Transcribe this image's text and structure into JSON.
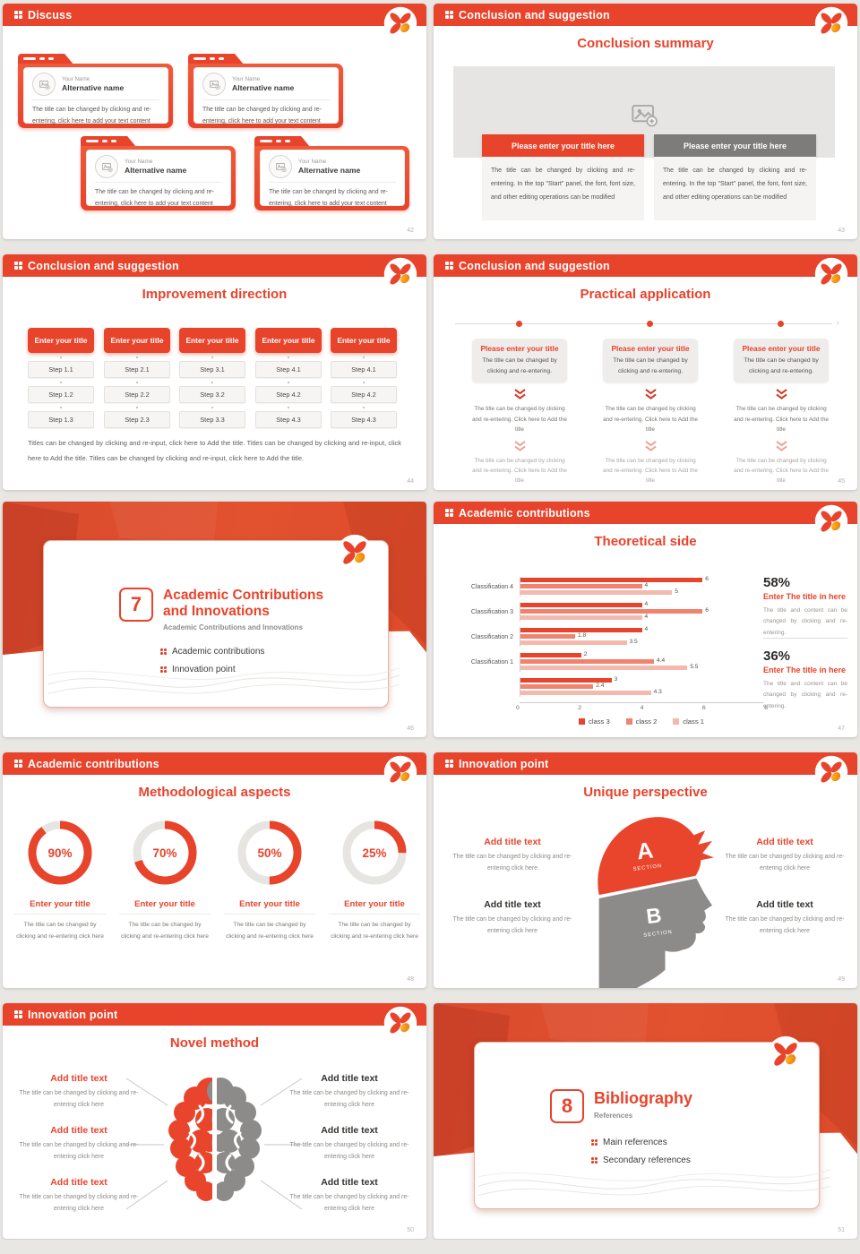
{
  "page": {
    "background": "#e9e7e4",
    "accent": "#e8432b"
  },
  "slides": [
    {
      "header": "Discuss",
      "page_number": "42",
      "cards": [
        {
          "name_label": "Your Name",
          "title": "Alternative name",
          "body": "The title can be changed by clicking and re-entering, click here to add your text content"
        },
        {
          "name_label": "Your Name",
          "title": "Alternative name",
          "body": "The title can be changed by clicking and re-entering, click here to add your text content"
        },
        {
          "name_label": "Your Name",
          "title": "Alternative name",
          "body": "The title can be changed by clicking and re-entering, click here to add your text content"
        },
        {
          "name_label": "Your Name",
          "title": "Alternative name",
          "body": "The title can be changed by clicking and re-entering, click here to add your text content"
        }
      ]
    },
    {
      "header": "Conclusion and suggestion",
      "title": "Conclusion summary",
      "page_number": "43",
      "panels": [
        {
          "title_bar": "Please enter your title here",
          "body": "The title can be changed by clicking and re-entering. In the top \"Start\" panel, the font, font size, and other editing operations can be modified"
        },
        {
          "title_bar": "Please enter your title here",
          "body": "The title can be changed by clicking and re-entering. In the top \"Start\" panel, the font, font size, and other editing operations can be modified"
        }
      ]
    },
    {
      "header": "Conclusion and suggestion",
      "title": "Improvement direction",
      "page_number": "44",
      "columns": [
        {
          "title": "Enter your title",
          "steps": [
            "Step 1.1",
            "Step 1.2",
            "Step 1.3"
          ]
        },
        {
          "title": "Enter your title",
          "steps": [
            "Step 2.1",
            "Step 2.2",
            "Step 2.3"
          ]
        },
        {
          "title": "Enter your title",
          "steps": [
            "Step 3.1",
            "Step 3.2",
            "Step 3.3"
          ]
        },
        {
          "title": "Enter your title",
          "steps": [
            "Step 4.1",
            "Step 4.2",
            "Step 4.3"
          ]
        },
        {
          "title": "Enter your title",
          "steps": [
            "Step 4.1",
            "Step 4.2",
            "Step 4.3"
          ]
        }
      ],
      "footer": "Titles can be changed by clicking and re-input, click here to Add the title. Titles can be changed by clicking and re-input, click here to Add the title. Titles can be changed by clicking and re-input, click here to Add the title."
    },
    {
      "header": "Conclusion and suggestion",
      "title": "Practical application",
      "page_number": "45",
      "columns": [
        {
          "title": "Please enter your title",
          "body": "The title can be changed by clicking and re-entering.",
          "step1": "The title can be changed by clicking and re-entering. Click here to Add the title",
          "step2": "The title can be changed by clicking and re-entering. Click here to Add the title"
        },
        {
          "title": "Please enter your title",
          "body": "The title can be changed by clicking and re-entering.",
          "step1": "The title can be changed by clicking and re-entering. Click here to Add the title",
          "step2": "The title can be changed by clicking and re-entering. Click here to Add the title"
        },
        {
          "title": "Please enter your title",
          "body": "The title can be changed by clicking and re-entering.",
          "step1": "The title can be changed by clicking and re-entering. Click here to Add the title",
          "step2": "The title can be changed by clicking and re-entering. Click here to Add the title"
        }
      ]
    },
    {
      "number": "7",
      "title_line1": "Academic Contributions",
      "title_line2": "and Innovations",
      "subtitle": "Academic Contributions and Innovations",
      "bullets": [
        "Academic contributions",
        "Innovation point"
      ],
      "page_number": "46"
    },
    {
      "header": "Academic contributions",
      "title": "Theoretical side",
      "page_number": "47",
      "chart_data": {
        "type": "bar",
        "orientation": "horizontal",
        "title": "Theoretical side",
        "categories": [
          "Classification 4",
          "Classification 3",
          "Classification 2",
          "Classification 1",
          ""
        ],
        "series": [
          {
            "name": "class 3",
            "color": "#e8432b",
            "values": [
              6,
              4,
              4,
              2,
              3
            ]
          },
          {
            "name": "class 2",
            "color": "#f0826e",
            "values": [
              4,
              6,
              1.8,
              4.4,
              2.4
            ]
          },
          {
            "name": "class 1",
            "color": "#f4b9ad",
            "values": [
              5,
              4,
              3.5,
              5.5,
              4.3
            ]
          }
        ],
        "xlim": [
          0,
          8
        ],
        "xticks": [
          0,
          2,
          4,
          6,
          8
        ],
        "grid": false,
        "legend_position": "bottom"
      },
      "stats": [
        {
          "value": "58%",
          "title": "Enter The title in here",
          "body": "The title and content can be changed by clicking and re-entering."
        },
        {
          "value": "36%",
          "title": "Enter The title in here",
          "body": "The title and content can be changed by clicking and re-entering."
        }
      ]
    },
    {
      "header": "Academic contributions",
      "title": "Methodological aspects",
      "page_number": "48",
      "items": [
        {
          "percent": 90,
          "percent_label": "90%",
          "title": "Enter your title",
          "body": "The title can be changed by clicking and re-entering click here"
        },
        {
          "percent": 70,
          "percent_label": "70%",
          "title": "Enter your title",
          "body": "The title can be changed by clicking and re-entering click here"
        },
        {
          "percent": 50,
          "percent_label": "50%",
          "title": "Enter your title",
          "body": "The title can be changed by clicking and re-entering click here"
        },
        {
          "percent": 25,
          "percent_label": "25%",
          "title": "Enter your title",
          "body": "The title can be changed by clicking and re-entering click here"
        }
      ]
    },
    {
      "header": "Innovation point",
      "title": "Unique perspective",
      "page_number": "49",
      "head": {
        "a": "A",
        "a_sub": "SECTION",
        "b": "B",
        "b_sub": "SECTION"
      },
      "left": [
        {
          "title": "Add title text",
          "body": "The title can be changed by clicking and re-entering click here"
        },
        {
          "title": "Add title text",
          "body": "The title can be changed by clicking and re-entering click here"
        }
      ],
      "right": [
        {
          "title": "Add title text",
          "body": "The title can be changed by clicking and re-entering click here"
        },
        {
          "title": "Add title text",
          "body": "The title can be changed by clicking and re-entering click here"
        }
      ]
    },
    {
      "header": "Innovation point",
      "title": "Novel method",
      "page_number": "50",
      "left": [
        {
          "title": "Add title text",
          "body": "The title can be changed by clicking and re-entering click here"
        },
        {
          "title": "Add title text",
          "body": "The title can be changed by clicking and re-entering click here"
        },
        {
          "title": "Add title text",
          "body": "The title can be changed by clicking and re-entering click here"
        }
      ],
      "right": [
        {
          "title": "Add title text",
          "body": "The title can be changed by clicking and re-entering click here"
        },
        {
          "title": "Add title text",
          "body": "The title can be changed by clicking and re-entering click here"
        },
        {
          "title": "Add title text",
          "body": "The title can be changed by clicking and re-entering click here"
        }
      ]
    },
    {
      "number": "8",
      "title_line1": "Bibliography",
      "title_line2": "",
      "subtitle": "References",
      "bullets": [
        "Main references",
        "Secondary references"
      ],
      "page_number": "51"
    }
  ]
}
